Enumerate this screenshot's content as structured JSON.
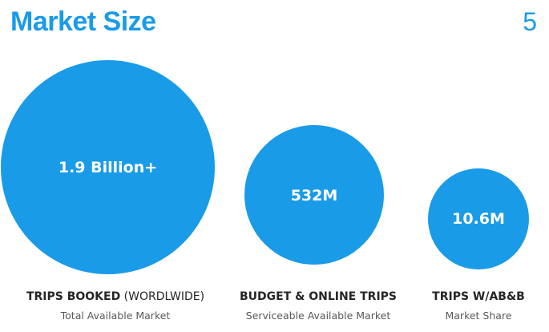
{
  "colors": {
    "accent": "#1a9be8",
    "circle_fill": "#1a9be8",
    "text_dark": "#262626",
    "text_muted": "#595959"
  },
  "header": {
    "title": "Market Size",
    "page_number": "5"
  },
  "circles": [
    {
      "value": "1.9 Billion+",
      "label_bold": "TRIPS BOOKED",
      "label_rest": " (WORDLWIDE)",
      "sublabel": "Total Available Market"
    },
    {
      "value": "532M",
      "label_bold": "BUDGET & ONLINE TRIPS",
      "label_rest": "",
      "sublabel": "Serviceable Available Market"
    },
    {
      "value": "10.6M",
      "label_bold": "TRIPS W/AB&B",
      "label_rest": "",
      "sublabel": "Market Share"
    }
  ]
}
